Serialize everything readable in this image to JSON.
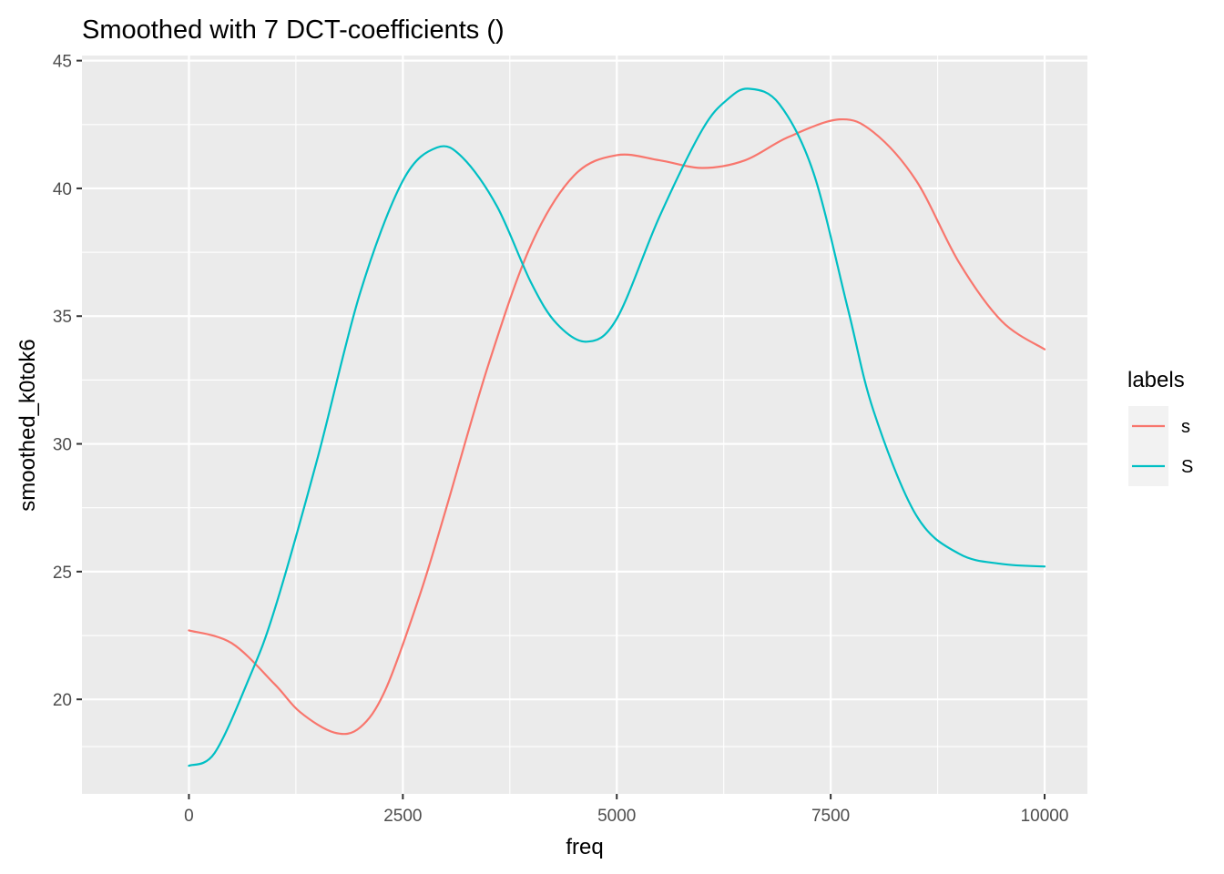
{
  "chart_data": {
    "type": "line",
    "title": "Smoothed with 7 DCT-coefficients ()",
    "xlabel": "freq",
    "ylabel": "smoothed_k0tok6",
    "xlim": [
      -1250,
      10500
    ],
    "ylim": [
      16.3,
      45.2
    ],
    "x_ticks": [
      0,
      2500,
      5000,
      7500,
      10000
    ],
    "x_tick_labels": [
      "0",
      "2500",
      "5000",
      "7500",
      "10000"
    ],
    "y_ticks": [
      20,
      25,
      30,
      35,
      40,
      45
    ],
    "y_tick_labels": [
      "20",
      "25",
      "30",
      "35",
      "40",
      "45"
    ],
    "grid": true,
    "legend": {
      "title": "labels",
      "position": "right"
    },
    "series": [
      {
        "name": "s",
        "color": "#F8766D",
        "x": [
          0,
          500,
          1000,
          1300,
          1700,
          2000,
          2300,
          2700,
          3000,
          3500,
          4000,
          4500,
          5000,
          5500,
          6000,
          6500,
          7000,
          7600,
          8000,
          8500,
          9000,
          9500,
          10000
        ],
        "y": [
          22.7,
          22.2,
          20.6,
          19.5,
          18.7,
          18.9,
          20.4,
          24.1,
          27.4,
          33.1,
          37.8,
          40.5,
          41.3,
          41.1,
          40.8,
          41.1,
          42.0,
          42.7,
          42.2,
          40.3,
          37.1,
          34.8,
          33.7
        ]
      },
      {
        "name": "S",
        "color": "#00BFC4",
        "x": [
          0,
          300,
          700,
          1000,
          1500,
          2000,
          2500,
          2900,
          3200,
          3600,
          4000,
          4300,
          4650,
          5000,
          5500,
          6000,
          6300,
          6550,
          6900,
          7300,
          7700,
          8000,
          8500,
          9000,
          9500,
          10000
        ],
        "y": [
          17.4,
          17.9,
          20.8,
          23.5,
          29.4,
          35.9,
          40.3,
          41.6,
          41.2,
          39.3,
          36.3,
          34.7,
          34.0,
          34.9,
          38.9,
          42.3,
          43.5,
          43.9,
          43.3,
          40.6,
          35.3,
          31.3,
          27.2,
          25.7,
          25.3,
          25.2
        ]
      }
    ]
  }
}
